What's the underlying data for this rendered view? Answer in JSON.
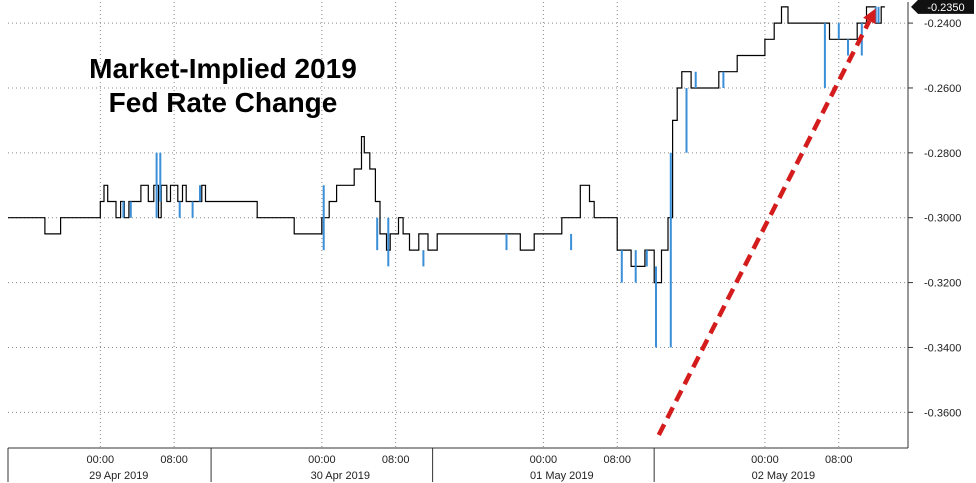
{
  "chart_data": {
    "type": "line",
    "title_lines": [
      "Market-Implied 2019",
      "Fed Rate Change"
    ],
    "y_ticks": [
      -0.24,
      -0.26,
      -0.28,
      -0.3,
      -0.32,
      -0.34,
      -0.36
    ],
    "y_tick_labels": [
      "-0.2400",
      "-0.2600",
      "-0.2800",
      "-0.3000",
      "-0.3200",
      "-0.3400",
      "-0.3600"
    ],
    "ylim": [
      -0.371,
      -0.2335
    ],
    "last_value": -0.235,
    "last_value_label": "-0.2350",
    "x_hours": [
      0,
      8,
      24,
      32,
      48,
      56,
      72,
      80
    ],
    "x_hour_labels": [
      "00:00",
      "08:00",
      "00:00",
      "08:00",
      "00:00",
      "08:00",
      "00:00",
      "08:00"
    ],
    "date_labels": [
      "29 Apr 2019",
      "30 Apr 2019",
      "01 May 2019",
      "02 May 2019"
    ],
    "date_label_hours": [
      2,
      26,
      50,
      74
    ],
    "day_boundaries": [
      12,
      36,
      60
    ],
    "xlim": [
      -10,
      87.5
    ],
    "grid": true,
    "series": [
      {
        "color": "#000000",
        "points": [
          [
            -10,
            -0.3
          ],
          [
            -6.3,
            -0.3
          ],
          [
            -6.0,
            -0.305
          ],
          [
            -4.6,
            -0.305
          ],
          [
            -4.3,
            -0.3
          ],
          [
            -0.3,
            -0.3
          ],
          [
            0.0,
            -0.295
          ],
          [
            0.4,
            -0.29
          ],
          [
            0.8,
            -0.295
          ],
          [
            1.5,
            -0.295
          ],
          [
            1.7,
            -0.3
          ],
          [
            2.2,
            -0.295
          ],
          [
            2.6,
            -0.3
          ],
          [
            3.1,
            -0.295
          ],
          [
            4.1,
            -0.295
          ],
          [
            4.4,
            -0.29
          ],
          [
            5.0,
            -0.29
          ],
          [
            5.2,
            -0.295
          ],
          [
            5.8,
            -0.29
          ],
          [
            6.3,
            -0.3
          ],
          [
            6.6,
            -0.29
          ],
          [
            7.2,
            -0.295
          ],
          [
            7.6,
            -0.29
          ],
          [
            8.2,
            -0.29
          ],
          [
            8.4,
            -0.295
          ],
          [
            8.9,
            -0.29
          ],
          [
            9.3,
            -0.295
          ],
          [
            10.5,
            -0.295
          ],
          [
            11.0,
            -0.29
          ],
          [
            11.4,
            -0.295
          ],
          [
            15.5,
            -0.295
          ],
          [
            17.0,
            -0.3
          ],
          [
            20.6,
            -0.3
          ],
          [
            21.0,
            -0.305
          ],
          [
            23.5,
            -0.305
          ],
          [
            24.0,
            -0.3
          ],
          [
            24.8,
            -0.295
          ],
          [
            25.6,
            -0.29
          ],
          [
            27.0,
            -0.29
          ],
          [
            27.5,
            -0.285
          ],
          [
            28.0,
            -0.285
          ],
          [
            28.3,
            -0.275
          ],
          [
            28.6,
            -0.28
          ],
          [
            29.2,
            -0.285
          ],
          [
            29.8,
            -0.295
          ],
          [
            30.3,
            -0.305
          ],
          [
            31.0,
            -0.31
          ],
          [
            31.4,
            -0.305
          ],
          [
            32.0,
            -0.305
          ],
          [
            32.3,
            -0.3
          ],
          [
            32.8,
            -0.305
          ],
          [
            33.5,
            -0.31
          ],
          [
            34.5,
            -0.305
          ],
          [
            35.5,
            -0.31
          ],
          [
            36.5,
            -0.305
          ],
          [
            38.5,
            -0.305
          ],
          [
            39.5,
            -0.305
          ],
          [
            45.0,
            -0.305
          ],
          [
            45.5,
            -0.31
          ],
          [
            47.0,
            -0.305
          ],
          [
            49.0,
            -0.305
          ],
          [
            50.0,
            -0.3
          ],
          [
            51.5,
            -0.3
          ],
          [
            52.0,
            -0.29
          ],
          [
            53.0,
            -0.295
          ],
          [
            53.5,
            -0.3
          ],
          [
            55.0,
            -0.3
          ],
          [
            56.0,
            -0.31
          ],
          [
            57.5,
            -0.315
          ],
          [
            59.0,
            -0.31
          ],
          [
            60.0,
            -0.32
          ],
          [
            60.8,
            -0.31
          ],
          [
            61.5,
            -0.3
          ],
          [
            62.0,
            -0.27
          ],
          [
            62.5,
            -0.26
          ],
          [
            63.0,
            -0.255
          ],
          [
            64.0,
            -0.26
          ],
          [
            65.0,
            -0.26
          ],
          [
            66.0,
            -0.26
          ],
          [
            67.0,
            -0.255
          ],
          [
            69.0,
            -0.25
          ],
          [
            71.5,
            -0.25
          ],
          [
            72.0,
            -0.245
          ],
          [
            73.0,
            -0.24
          ],
          [
            73.8,
            -0.235
          ],
          [
            74.5,
            -0.24
          ],
          [
            77.0,
            -0.24
          ],
          [
            79.0,
            -0.245
          ],
          [
            80.5,
            -0.245
          ],
          [
            82.0,
            -0.24
          ],
          [
            83.0,
            -0.235
          ],
          [
            84.0,
            -0.24
          ],
          [
            84.6,
            -0.235
          ],
          [
            85.0,
            -0.235
          ]
        ]
      },
      {
        "color": "#3a8fd8",
        "points": [
          [
            1.8,
            -0.3
          ],
          [
            2.5,
            -0.295
          ],
          [
            3.3,
            -0.3
          ],
          [
            6.1,
            -0.28
          ],
          [
            6.5,
            -0.295
          ],
          [
            8.6,
            -0.3
          ],
          [
            10.0,
            -0.295
          ],
          [
            10.8,
            -0.29
          ],
          [
            24.2,
            -0.31
          ],
          [
            30.0,
            -0.3
          ],
          [
            31.2,
            -0.315
          ],
          [
            35.0,
            -0.31
          ],
          [
            40.0,
            -0.31
          ],
          [
            44.0,
            -0.305
          ],
          [
            51.0,
            -0.31
          ],
          [
            56.5,
            -0.32
          ],
          [
            58.0,
            -0.31
          ],
          [
            59.2,
            -0.315
          ],
          [
            60.2,
            -0.34
          ],
          [
            61.8,
            -0.28
          ],
          [
            63.5,
            -0.26
          ],
          [
            64.5,
            -0.255
          ],
          [
            67.5,
            -0.26
          ],
          [
            78.5,
            -0.24
          ],
          [
            80.0,
            -0.245
          ],
          [
            81.0,
            -0.25
          ],
          [
            82.5,
            -0.24
          ],
          [
            84.0,
            -0.235
          ],
          [
            84.3,
            -0.24
          ]
        ]
      }
    ],
    "annotation_arrow": {
      "from": [
        60.5,
        -0.367
      ],
      "to": [
        84.0,
        -0.2355
      ],
      "color": "#d41c1c"
    }
  }
}
